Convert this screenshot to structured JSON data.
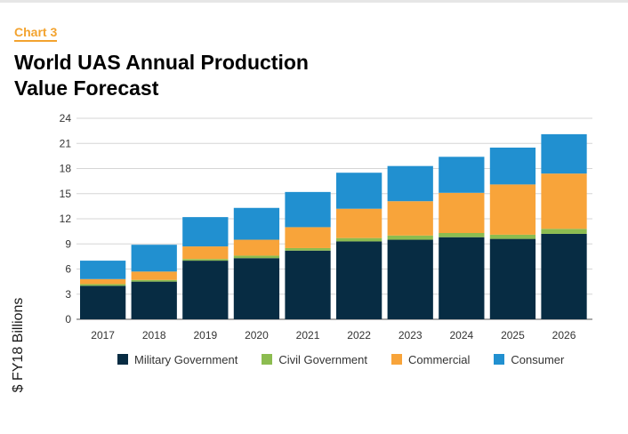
{
  "header": {
    "chart_label": "Chart 3",
    "title_line1": "World UAS Annual Production",
    "title_line2": "Value Forecast"
  },
  "colors": {
    "military": "#072c43",
    "civil": "#8cbc50",
    "commercial": "#f8a43a",
    "consumer": "#2190d0",
    "accent": "#f3a32f",
    "grid": "#d6d6d6"
  },
  "chart_data": {
    "type": "bar",
    "stacked": true,
    "title": "World UAS Annual Production Value Forecast",
    "xlabel": "",
    "ylabel": "$ FY18 Billions",
    "ylim": [
      0,
      24
    ],
    "yticks": [
      0,
      3,
      6,
      9,
      12,
      15,
      18,
      21,
      24
    ],
    "grid": true,
    "legend_position": "bottom",
    "categories": [
      "2017",
      "2018",
      "2019",
      "2020",
      "2021",
      "2022",
      "2023",
      "2024",
      "2025",
      "2026"
    ],
    "series": [
      {
        "name": "Military Government",
        "color": "#072c43",
        "values": [
          4.0,
          4.5,
          7.0,
          7.3,
          8.2,
          9.3,
          9.5,
          9.8,
          9.6,
          10.2
        ]
      },
      {
        "name": "Civil Government",
        "color": "#8cbc50",
        "values": [
          0.2,
          0.2,
          0.2,
          0.3,
          0.3,
          0.4,
          0.5,
          0.5,
          0.5,
          0.6
        ]
      },
      {
        "name": "Commercial",
        "color": "#f8a43a",
        "values": [
          0.6,
          1.0,
          1.5,
          1.9,
          2.5,
          3.5,
          4.1,
          4.8,
          6.0,
          6.6
        ]
      },
      {
        "name": "Consumer",
        "color": "#2190d0",
        "values": [
          2.2,
          3.2,
          3.5,
          3.8,
          4.2,
          4.3,
          4.2,
          4.3,
          4.4,
          4.7
        ]
      }
    ]
  }
}
